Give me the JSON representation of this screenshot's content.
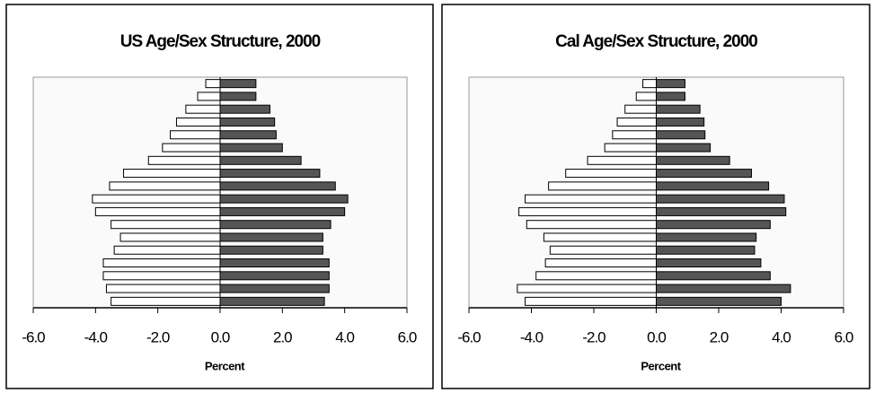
{
  "chart_data": [
    {
      "type": "bar",
      "orientation": "horizontal",
      "title": "US Age/Sex Structure, 2000",
      "x_label": "Percent",
      "categories": [
        null,
        null,
        null,
        null,
        null,
        null,
        null,
        null,
        null,
        null,
        null,
        null,
        null,
        null,
        null,
        null,
        null,
        null
      ],
      "series": [
        {
          "color": "#ffffff",
          "values": [
            -0.46,
            -0.72,
            -1.1,
            -1.4,
            -1.6,
            -1.85,
            -2.3,
            -3.1,
            -3.55,
            -4.1,
            -4.0,
            -3.5,
            -3.2,
            -3.4,
            -3.75,
            -3.75,
            -3.65,
            -3.5
          ]
        },
        {
          "color": "#555555",
          "values": [
            1.15,
            1.15,
            1.6,
            1.75,
            1.8,
            2.0,
            2.6,
            3.2,
            3.7,
            4.1,
            4.0,
            3.55,
            3.3,
            3.3,
            3.5,
            3.5,
            3.5,
            3.35
          ]
        }
      ],
      "xlim": [
        -6,
        6
      ],
      "xticks": [
        {
          "value": -6,
          "label": "-6.0"
        },
        {
          "value": -4,
          "label": "-4.0"
        },
        {
          "value": -2,
          "label": "-2.0"
        },
        {
          "value": 0,
          "label": "0.0"
        },
        {
          "value": 2,
          "label": "2.0"
        },
        {
          "value": 4,
          "label": "4.0"
        },
        {
          "value": 6,
          "label": "6.0"
        }
      ],
      "grid": false
    },
    {
      "type": "bar",
      "orientation": "horizontal",
      "title": "Cal Age/Sex Structure, 2000",
      "x_label": "Percent",
      "categories": [
        null,
        null,
        null,
        null,
        null,
        null,
        null,
        null,
        null,
        null,
        null,
        null,
        null,
        null,
        null,
        null,
        null,
        null
      ],
      "series": [
        {
          "color": "#ffffff",
          "values": [
            -0.43,
            -0.64,
            -1.0,
            -1.25,
            -1.4,
            -1.65,
            -2.2,
            -2.9,
            -3.45,
            -4.2,
            -4.4,
            -4.15,
            -3.6,
            -3.4,
            -3.55,
            -3.85,
            -4.45,
            -4.2
          ]
        },
        {
          "color": "#555555",
          "values": [
            0.92,
            0.92,
            1.4,
            1.53,
            1.56,
            1.73,
            2.35,
            3.05,
            3.6,
            4.1,
            4.15,
            3.65,
            3.2,
            3.15,
            3.35,
            3.65,
            4.3,
            4.0
          ]
        }
      ],
      "xlim": [
        -6,
        6
      ],
      "xticks": [
        {
          "value": -6,
          "label": "-6.0"
        },
        {
          "value": -4,
          "label": "-4.0"
        },
        {
          "value": -2,
          "label": "-2.0"
        },
        {
          "value": 0,
          "label": "0.0"
        },
        {
          "value": 2,
          "label": "2.0"
        },
        {
          "value": 4,
          "label": "4.0"
        },
        {
          "value": 6,
          "label": "6.0"
        }
      ],
      "grid": false
    }
  ]
}
